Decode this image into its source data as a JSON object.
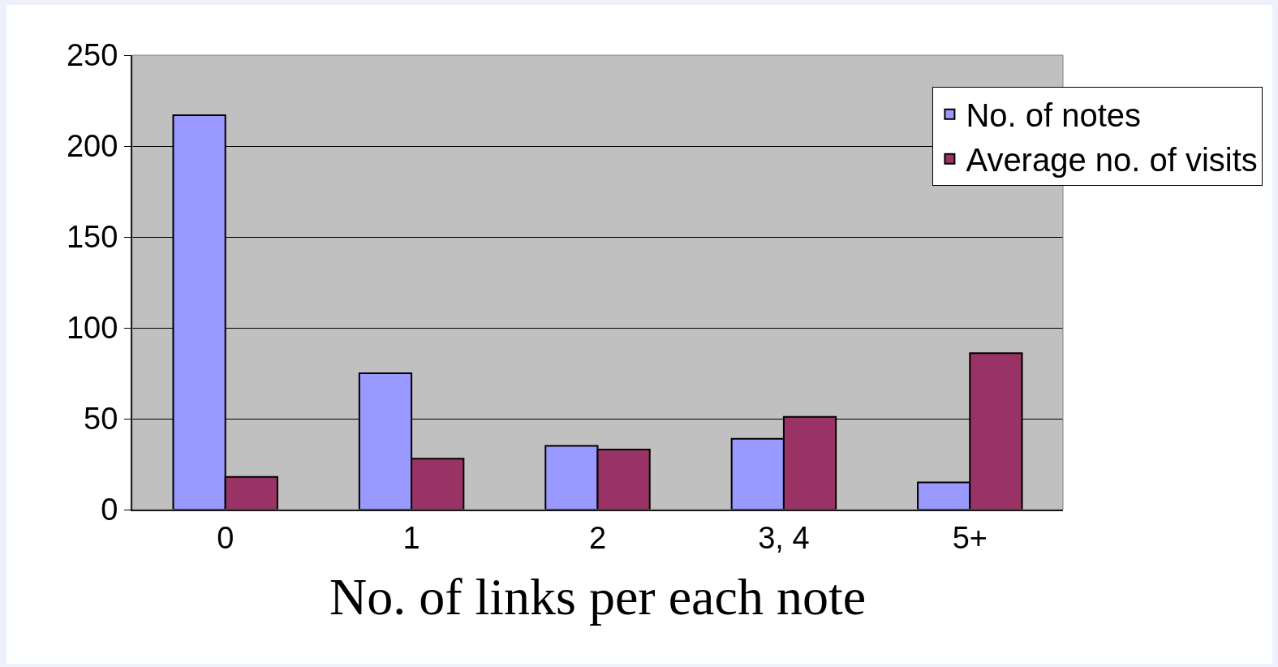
{
  "chart_data": {
    "type": "bar",
    "xlabel": "No. of links per each note",
    "categories": [
      "0",
      "1",
      "2",
      "3, 4",
      "5+"
    ],
    "series": [
      {
        "name": "No. of notes",
        "color": "#9999ff",
        "values": [
          217,
          75,
          35,
          39,
          15
        ]
      },
      {
        "name": "Average no. of visits",
        "color": "#993366",
        "values": [
          18,
          28,
          33,
          51,
          86
        ]
      }
    ],
    "ylim": [
      0,
      250
    ],
    "yticks": [
      0,
      50,
      100,
      150,
      200,
      250
    ],
    "grid": "y",
    "legend": "top right"
  }
}
